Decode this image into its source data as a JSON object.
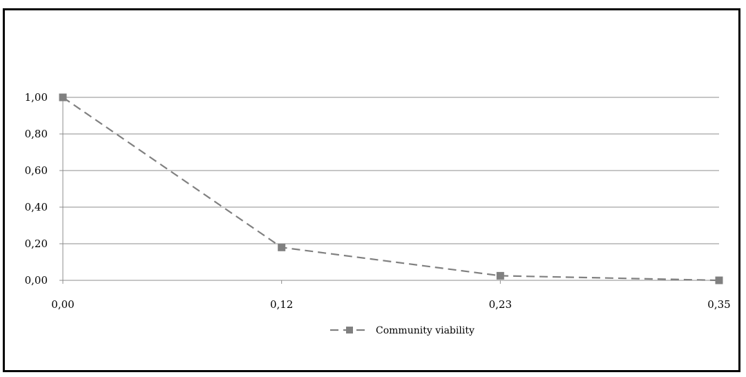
{
  "chart_data": {
    "type": "line",
    "title": "",
    "xlabel": "",
    "ylabel": "",
    "x": [
      "0,00",
      "0,12",
      "0,23",
      "0,35"
    ],
    "y_ticks": [
      "0,00",
      "0,20",
      "0,40",
      "0,60",
      "0,80",
      "1,00"
    ],
    "ylim": [
      0,
      1
    ],
    "grid": true,
    "legend_position": "bottom",
    "series": [
      {
        "name": "Community viability",
        "values": [
          1.0,
          0.18,
          0.025,
          0.0
        ],
        "color": "#808080",
        "line_style": "dashed",
        "marker": "square"
      }
    ]
  }
}
